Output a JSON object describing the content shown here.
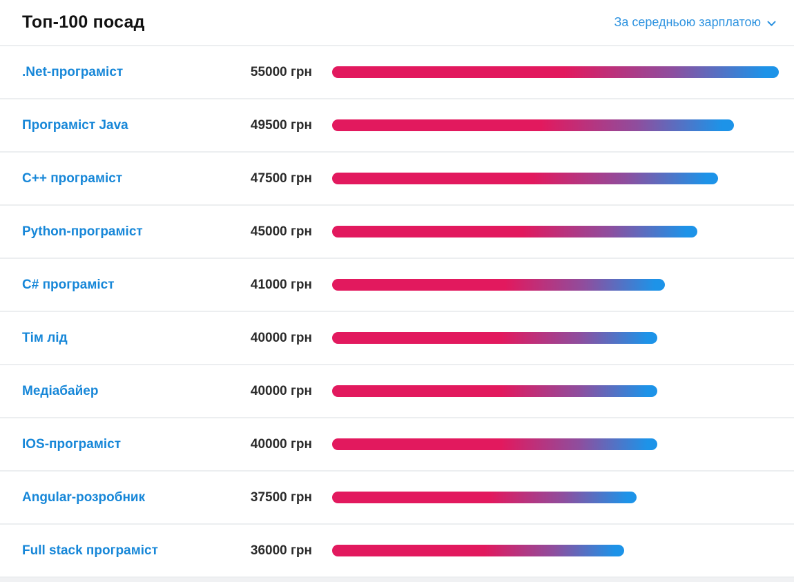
{
  "header": {
    "title": "Топ-100 посад",
    "sort_label": "За середньою зарплатою"
  },
  "rows": [
    {
      "title": ".Net-програміст",
      "salary_label": "55000 грн",
      "value": 55000
    },
    {
      "title": "Програміст Java",
      "salary_label": "49500 грн",
      "value": 49500
    },
    {
      "title": "C++ програміст",
      "salary_label": "47500 грн",
      "value": 47500
    },
    {
      "title": "Python-програміст",
      "salary_label": "45000 грн",
      "value": 45000
    },
    {
      "title": "C# програміст",
      "salary_label": "41000 грн",
      "value": 41000
    },
    {
      "title": "Тім лід",
      "salary_label": "40000 грн",
      "value": 40000
    },
    {
      "title": "Медіабайер",
      "salary_label": "40000 грн",
      "value": 40000
    },
    {
      "title": "IOS-програміст",
      "salary_label": "40000 грн",
      "value": 40000
    },
    {
      "title": "Angular-розробник",
      "salary_label": "37500 грн",
      "value": 37500
    },
    {
      "title": "Full stack програміст",
      "salary_label": "36000 грн",
      "value": 36000
    }
  ],
  "chart_data": {
    "type": "bar",
    "title": "Топ-100 посад",
    "sort_mode": "За середньою зарплатою",
    "categories": [
      ".Net-програміст",
      "Програміст Java",
      "C++ програміст",
      "Python-програміст",
      "C# програміст",
      "Тім лід",
      "Медіабайер",
      "IOS-програміст",
      "Angular-розробник",
      "Full stack програміст"
    ],
    "values": [
      55000,
      49500,
      47500,
      45000,
      41000,
      40000,
      40000,
      40000,
      37500,
      36000
    ],
    "unit": "грн",
    "xlabel": "",
    "ylabel": "",
    "xlim": [
      0,
      55000
    ],
    "grid": false,
    "legend": false,
    "orientation": "horizontal"
  },
  "colors": {
    "bar_gradient_start": "#e2195e",
    "bar_gradient_mid": "#8e4e9e",
    "bar_gradient_end": "#1d93e8",
    "link_blue": "#1787d8",
    "sort_blue": "#2e93e0",
    "separator": "#eceef0",
    "salary_text": "#2b2b2b"
  },
  "icons": {
    "chevron_down": "chevron-down-icon"
  }
}
